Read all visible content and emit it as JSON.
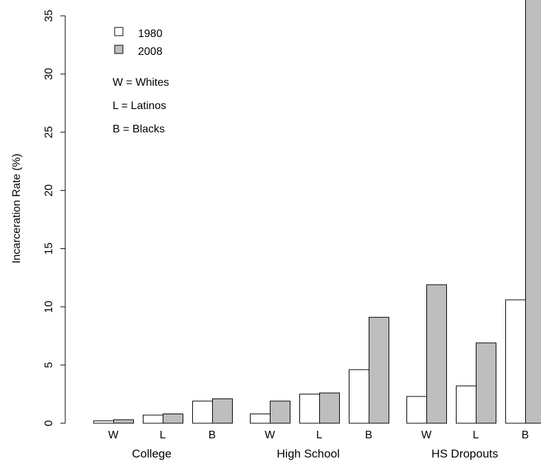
{
  "chart_data": {
    "type": "bar",
    "ylabel": "Incarceration Rate (%)",
    "yticks": [
      0,
      5,
      10,
      15,
      20,
      25,
      30,
      35
    ],
    "ylim": [
      0,
      35
    ],
    "grid": false,
    "legend_position": "top-left",
    "groups": [
      {
        "label": "College",
        "categories": [
          "W",
          "L",
          "B"
        ]
      },
      {
        "label": "High School",
        "categories": [
          "W",
          "L",
          "B"
        ]
      },
      {
        "label": "HS Dropouts",
        "categories": [
          "W",
          "L",
          "B"
        ]
      }
    ],
    "series": [
      {
        "name": "1980",
        "color": "#ffffff",
        "values": [
          0.2,
          0.7,
          1.9,
          0.8,
          2.5,
          4.6,
          2.3,
          3.2,
          10.6
        ]
      },
      {
        "name": "2008",
        "color": "#bebebe",
        "values": [
          0.3,
          0.8,
          2.1,
          1.9,
          2.6,
          9.1,
          11.9,
          6.9,
          37.2
        ]
      }
    ],
    "notes": [
      "W = Whites",
      "L = Latinos",
      "B = Blacks"
    ]
  }
}
